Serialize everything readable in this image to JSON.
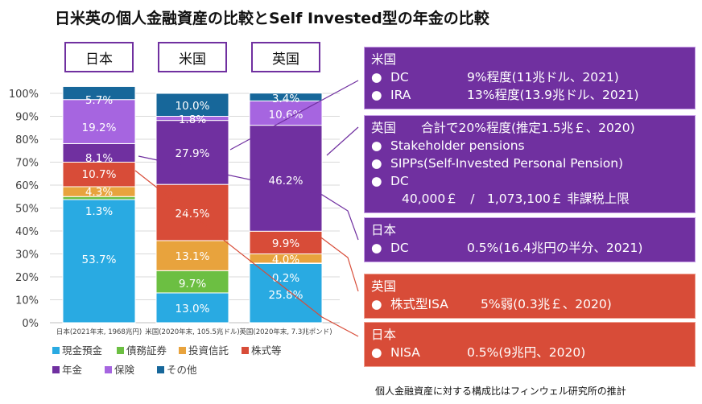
{
  "title": "日米英の個人金融資産の比較とSelf Invested型の年金の比較",
  "countries": [
    "日本",
    "米国",
    "英国"
  ],
  "chart_data": {
    "type": "bar",
    "stacked": true,
    "categories": [
      "日本(2021年末, 1968兆円)",
      "米国(2020年末, 105.5兆ドル)",
      "英国(2020年末, 7.3兆ポンド)"
    ],
    "ylim": [
      0,
      100
    ],
    "yticks": [
      "0%",
      "10%",
      "20%",
      "30%",
      "40%",
      "50%",
      "60%",
      "70%",
      "80%",
      "90%",
      "100%"
    ],
    "grid": true,
    "legend_position": "bottom-left",
    "series": [
      {
        "name": "現金預金",
        "color": "#29aae2",
        "values": [
          53.7,
          13.0,
          25.8
        ],
        "labels": [
          "53.7%",
          "13.0%",
          "25.8%"
        ]
      },
      {
        "name": "債務証券",
        "color": "#6cbf42",
        "values": [
          1.3,
          9.7,
          0.2
        ],
        "labels": [
          "1.3%",
          "9.7%",
          "0.2%"
        ]
      },
      {
        "name": "投資信託",
        "color": "#e8a33d",
        "values": [
          4.3,
          13.1,
          4.0
        ],
        "labels": [
          "4.3%",
          "13.1%",
          "4.0%"
        ]
      },
      {
        "name": "株式等",
        "color": "#d84c38",
        "values": [
          10.7,
          24.5,
          9.9
        ],
        "labels": [
          "10.7%",
          "24.5%",
          "9.9%"
        ]
      },
      {
        "name": "年金",
        "color": "#7030a0",
        "values": [
          8.1,
          27.9,
          46.2
        ],
        "labels": [
          "8.1%",
          "27.9%",
          "46.2%"
        ]
      },
      {
        "name": "保険",
        "color": "#a665e0",
        "values": [
          19.2,
          1.8,
          10.6
        ],
        "labels": [
          "19.2%",
          "1.8%",
          "10.6%"
        ]
      },
      {
        "name": "その他",
        "color": "#17679a",
        "values": [
          5.7,
          10.0,
          3.4
        ],
        "labels": [
          "5.7%",
          "10.0%",
          "3.4%"
        ]
      }
    ]
  },
  "boxes": {
    "us": {
      "header": "米国",
      "items": [
        {
          "bullet": "●",
          "name": "DC",
          "value": "9%程度(11兆ドル、2021)"
        },
        {
          "bullet": "●",
          "name": "IRA",
          "value": "13%程度(13.9兆ドル、2021)"
        }
      ]
    },
    "uk": {
      "header": "英国",
      "header_note": "合計で20%程度(推定1.5兆￡、2020)",
      "items": [
        {
          "bullet": "●",
          "name": "Stakeholder pensions"
        },
        {
          "bullet": "●",
          "name": "SIPPs(Self-Invested Personal Pension)"
        },
        {
          "bullet": "●",
          "name": "DC"
        }
      ],
      "dc_limit": "40,000￡　/　1,073,100￡ 非課税上限"
    },
    "jp": {
      "header": "日本",
      "items": [
        {
          "bullet": "●",
          "name": "DC",
          "value": "0.5%(16.4兆円の半分、2021)"
        }
      ]
    },
    "uk_isa": {
      "header": "英国",
      "items": [
        {
          "bullet": "●",
          "name": "株式型ISA",
          "value": "5%弱(0.3兆￡、2020)"
        }
      ]
    },
    "jp_nisa": {
      "header": "日本",
      "items": [
        {
          "bullet": "●",
          "name": "NISA",
          "value": "0.5%(9兆円、2020)"
        }
      ]
    }
  },
  "footnote": "個人金融資産に対する構成比はフィンウェル研究所の推計"
}
